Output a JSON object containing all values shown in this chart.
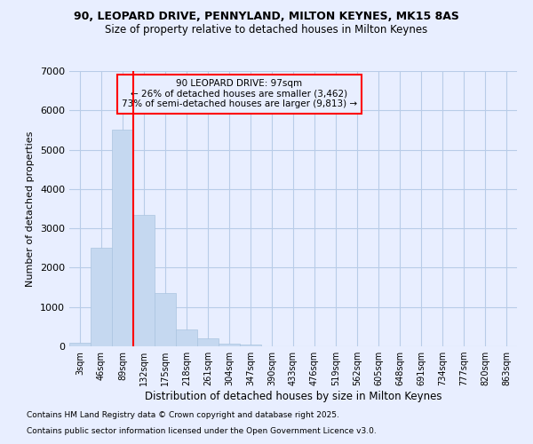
{
  "title_line1": "90, LEOPARD DRIVE, PENNYLAND, MILTON KEYNES, MK15 8AS",
  "title_line2": "Size of property relative to detached houses in Milton Keynes",
  "xlabel": "Distribution of detached houses by size in Milton Keynes",
  "ylabel": "Number of detached properties",
  "categories": [
    "3sqm",
    "46sqm",
    "89sqm",
    "132sqm",
    "175sqm",
    "218sqm",
    "261sqm",
    "304sqm",
    "347sqm",
    "390sqm",
    "433sqm",
    "476sqm",
    "519sqm",
    "562sqm",
    "605sqm",
    "648sqm",
    "691sqm",
    "734sqm",
    "777sqm",
    "820sqm",
    "863sqm"
  ],
  "values": [
    100,
    2500,
    5500,
    3350,
    1350,
    425,
    200,
    75,
    50,
    0,
    0,
    0,
    0,
    0,
    0,
    0,
    0,
    0,
    0,
    0,
    0
  ],
  "bar_color": "#c5d8f0",
  "bar_edge_color": "#aac4e0",
  "vline_color": "red",
  "annotation_text": "90 LEOPARD DRIVE: 97sqm\n← 26% of detached houses are smaller (3,462)\n73% of semi-detached houses are larger (9,813) →",
  "annotation_box_color": "red",
  "ylim": [
    0,
    7000
  ],
  "yticks": [
    0,
    1000,
    2000,
    3000,
    4000,
    5000,
    6000,
    7000
  ],
  "bg_color": "#e8eeff",
  "grid_color": "#b8cce8",
  "footnote1": "Contains HM Land Registry data © Crown copyright and database right 2025.",
  "footnote2": "Contains public sector information licensed under the Open Government Licence v3.0."
}
